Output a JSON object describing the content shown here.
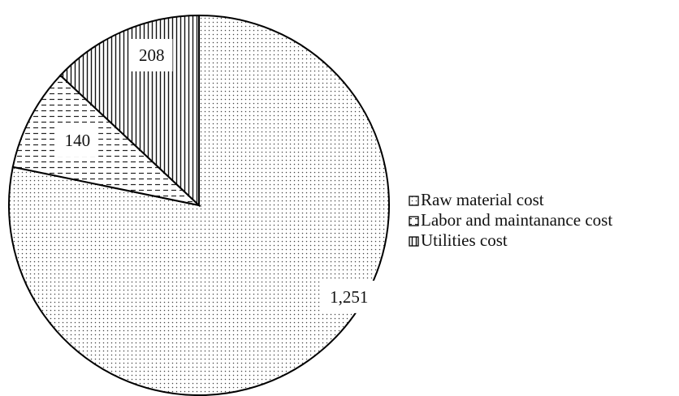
{
  "chart_data": {
    "type": "pie",
    "categories": [
      "Raw material cost",
      "Labor and maintanance cost",
      "Utilities cost"
    ],
    "values": [
      1251,
      140,
      208
    ],
    "value_labels": [
      "1,251",
      "140",
      "208"
    ],
    "patterns": [
      "dots",
      "dashes",
      "vertical"
    ],
    "color": "#000000",
    "legend": "right"
  }
}
